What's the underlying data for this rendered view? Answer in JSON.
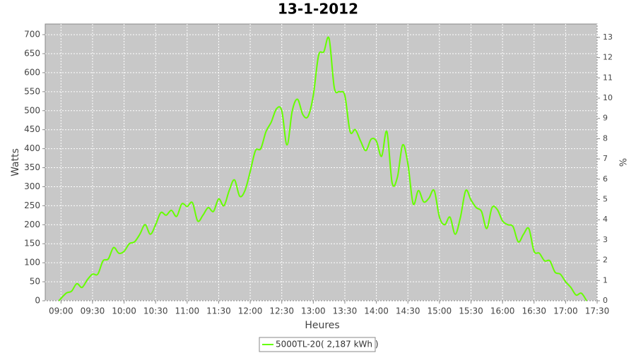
{
  "chart_data": {
    "type": "line",
    "title": "13-1-2012",
    "x_label": "Heures",
    "y_label": "Watts",
    "y2_label": "%",
    "x": [
      "08:58",
      "09:05",
      "09:10",
      "09:15",
      "09:20",
      "09:25",
      "09:30",
      "09:35",
      "09:40",
      "09:45",
      "09:50",
      "09:55",
      "10:00",
      "10:05",
      "10:10",
      "10:15",
      "10:20",
      "10:25",
      "10:30",
      "10:35",
      "10:40",
      "10:45",
      "10:50",
      "10:55",
      "11:00",
      "11:05",
      "11:10",
      "11:15",
      "11:20",
      "11:25",
      "11:30",
      "11:35",
      "11:40",
      "11:45",
      "11:50",
      "11:55",
      "12:00",
      "12:05",
      "12:10",
      "12:15",
      "12:20",
      "12:25",
      "12:30",
      "12:35",
      "12:40",
      "12:45",
      "12:50",
      "12:55",
      "13:00",
      "13:05",
      "13:10",
      "13:15",
      "13:20",
      "13:25",
      "13:30",
      "13:35",
      "13:40",
      "13:45",
      "13:50",
      "13:55",
      "14:00",
      "14:05",
      "14:10",
      "14:15",
      "14:20",
      "14:25",
      "14:30",
      "14:35",
      "14:40",
      "14:45",
      "14:50",
      "14:55",
      "15:00",
      "15:05",
      "15:10",
      "15:15",
      "15:20",
      "15:25",
      "15:30",
      "15:35",
      "15:40",
      "15:45",
      "15:50",
      "15:55",
      "16:00",
      "16:05",
      "16:10",
      "16:15",
      "16:20",
      "16:25",
      "16:30",
      "16:35",
      "16:40",
      "16:45",
      "16:50",
      "16:55",
      "17:00",
      "17:05",
      "17:10",
      "17:15",
      "17:20"
    ],
    "series": [
      {
        "name": "5000TL-20( 2,187 kWh )",
        "color": "#66ff00",
        "values": [
          0,
          20,
          25,
          45,
          35,
          55,
          70,
          70,
          105,
          110,
          140,
          125,
          130,
          150,
          155,
          175,
          200,
          175,
          200,
          232,
          225,
          238,
          222,
          255,
          248,
          258,
          210,
          225,
          245,
          235,
          268,
          250,
          290,
          318,
          275,
          290,
          340,
          395,
          400,
          445,
          470,
          505,
          500,
          410,
          500,
          530,
          490,
          485,
          540,
          645,
          655,
          690,
          560,
          550,
          540,
          445,
          450,
          420,
          395,
          425,
          420,
          380,
          445,
          310,
          325,
          410,
          360,
          255,
          290,
          260,
          270,
          290,
          220,
          200,
          220,
          175,
          220,
          290,
          265,
          245,
          235,
          190,
          245,
          240,
          210,
          200,
          195,
          155,
          175,
          190,
          130,
          125,
          105,
          105,
          75,
          70,
          50,
          35,
          15,
          20,
          0
        ]
      }
    ],
    "xlim": [
      "08:45",
      "17:30"
    ],
    "xticks": [
      "09:00",
      "09:30",
      "10:00",
      "10:30",
      "11:00",
      "11:30",
      "12:00",
      "12:30",
      "13:00",
      "13:30",
      "14:00",
      "14:30",
      "15:00",
      "15:30",
      "16:00",
      "16:30",
      "17:00",
      "17:30"
    ],
    "ylim": [
      0,
      728
    ],
    "yticks": [
      0,
      50,
      100,
      150,
      200,
      250,
      300,
      350,
      400,
      450,
      500,
      550,
      600,
      650,
      700
    ],
    "y2lim": [
      0,
      13.66
    ],
    "y2ticks": [
      0,
      1,
      2,
      3,
      4,
      5,
      6,
      7,
      8,
      9,
      10,
      11,
      12,
      13
    ],
    "grid": true
  }
}
